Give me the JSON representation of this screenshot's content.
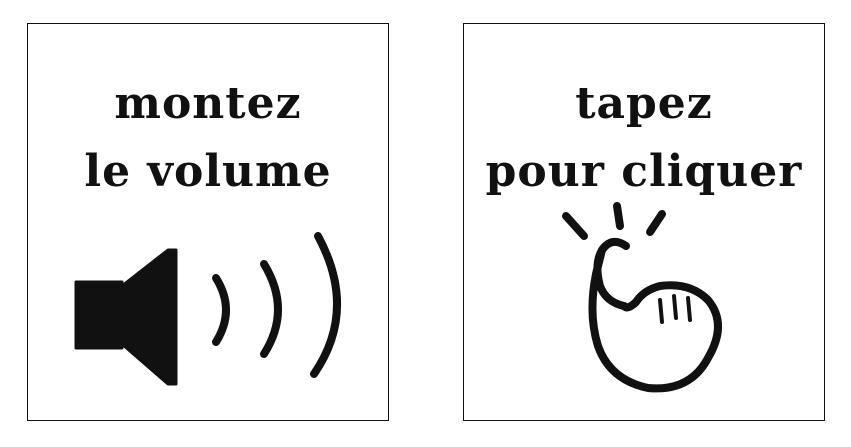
{
  "panels": [
    {
      "line1": "montez",
      "line2": "le volume",
      "icon": "speaker-volume-icon"
    },
    {
      "line1": "tapez",
      "line2": "pour cliquer",
      "icon": "tap-finger-icon"
    }
  ],
  "colors": {
    "ink": "#111111",
    "background": "#ffffff"
  }
}
